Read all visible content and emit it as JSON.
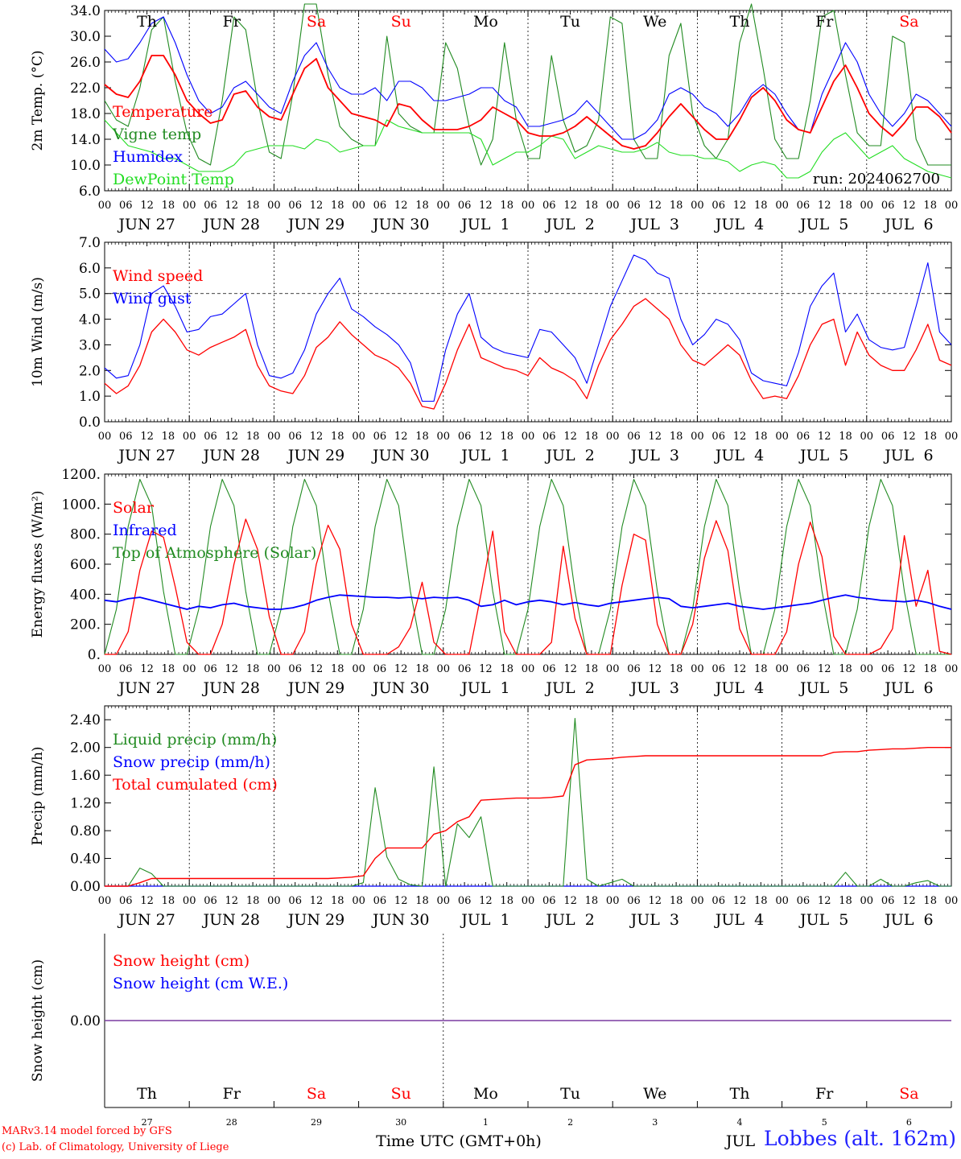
{
  "colors": {
    "red": "#ff0000",
    "green": "#228b22",
    "blue": "#0000ff",
    "lightgreen": "#22dd22",
    "purple": "#7a3ca0",
    "black": "#000000"
  },
  "footer": {
    "model": "MARv3.14 model forced by GFS",
    "lab": "(c) Lab. of Climatology, University of Liege",
    "station": "Lobbes (alt. 162m)"
  },
  "chart_data": [
    {
      "type": "line",
      "ylabel": "2m Temp. (°C)",
      "ylim": [
        6,
        34
      ],
      "yticks": [
        "6.0",
        "10.0",
        "14.0",
        "18.0",
        "22.0",
        "26.0",
        "30.0",
        "34.0"
      ],
      "note": "run: 2024062700",
      "grid": "vertical dotted at 00 UTC",
      "legend_placement": "left",
      "day_names": [
        "Th",
        "Fr",
        "Sa",
        "Su",
        "Mo",
        "Tu",
        "We",
        "Th",
        "Fr",
        "Sa"
      ],
      "day_colors": [
        "black",
        "black",
        "red",
        "red",
        "black",
        "black",
        "black",
        "black",
        "black",
        "red"
      ],
      "hour_ticks": [
        "00",
        "06",
        "12",
        "18"
      ],
      "date_labels": [
        "JUN 27",
        "JUN 28",
        "JUN 29",
        "JUN 30",
        "JUL  1",
        "JUL  2",
        "JUL  3",
        "JUL  4",
        "JUL  5",
        "JUL  6"
      ],
      "x_hours_step": 6,
      "series": [
        {
          "name": "Temperature",
          "color": "red",
          "values": [
            22.5,
            21,
            20.5,
            23,
            27,
            27,
            24,
            20,
            18,
            16.5,
            17,
            21,
            21.5,
            19,
            17.5,
            17,
            21,
            25,
            26.5,
            22,
            20,
            18,
            17.5,
            17,
            16,
            19.5,
            19,
            17,
            15.5,
            15.5,
            15.5,
            16,
            17,
            19,
            18,
            17,
            15,
            14.5,
            14.5,
            15,
            16,
            17.5,
            16,
            14.5,
            13,
            12.5,
            13,
            15,
            17.5,
            19.5,
            17.5,
            15.5,
            14,
            14,
            17,
            20.5,
            22,
            20,
            17,
            15.5,
            15,
            19,
            23,
            25.5,
            22,
            18,
            16,
            14.5,
            16.5,
            19,
            19,
            17.5,
            15
          ]
        },
        {
          "name": "Vigne temp",
          "color": "green",
          "values": [
            20,
            17,
            16,
            22,
            31,
            33,
            23,
            15,
            11,
            10,
            20,
            33,
            31,
            20,
            12,
            11,
            21,
            35,
            35,
            24,
            16,
            14,
            13,
            13,
            30,
            18,
            16,
            15,
            15,
            29,
            25,
            16,
            10,
            14,
            29,
            17,
            11,
            11,
            27,
            17,
            12,
            13,
            17,
            33,
            32,
            14,
            11,
            11,
            27,
            32,
            18,
            13,
            11,
            14,
            29,
            35,
            25,
            14,
            11,
            11,
            20,
            33,
            34,
            24,
            15,
            13,
            13,
            30,
            29,
            14,
            10,
            10,
            10
          ]
        },
        {
          "name": "Humidex",
          "color": "blue",
          "values": [
            28,
            26,
            26.5,
            29,
            32,
            33,
            29,
            24,
            20,
            18,
            19,
            22,
            23,
            21,
            19,
            18,
            23,
            27,
            29,
            25,
            22,
            21,
            21,
            22,
            20,
            23,
            23,
            22,
            20,
            20,
            20.5,
            21,
            22,
            22,
            20,
            19,
            16,
            16,
            16.5,
            17,
            18,
            20,
            18,
            16,
            14,
            14,
            15,
            17,
            21,
            22,
            21,
            19,
            18,
            16,
            18,
            21,
            22.5,
            21,
            18,
            15.5,
            15,
            21,
            25,
            29,
            26,
            21,
            18,
            16,
            18,
            21,
            20,
            18,
            16
          ]
        },
        {
          "name": "DewPoint Temp",
          "color": "lightgreen",
          "values": [
            17,
            15,
            13,
            12.5,
            12,
            11,
            11,
            10,
            9,
            9,
            9,
            10,
            12,
            12.5,
            13,
            13,
            13,
            12.5,
            14,
            13.5,
            12,
            12.5,
            13,
            13,
            17,
            16,
            15.5,
            15,
            15,
            15,
            15,
            15,
            14,
            10,
            11,
            12,
            12,
            13,
            14.5,
            14,
            11,
            12,
            13,
            12.5,
            12,
            12,
            12.5,
            13.5,
            12,
            11.5,
            11.5,
            11,
            11,
            10.5,
            9,
            10,
            10.5,
            10,
            8,
            8,
            9,
            12,
            14,
            15,
            13,
            11,
            12,
            13,
            11,
            10,
            9,
            8.5,
            8
          ]
        }
      ]
    },
    {
      "type": "line",
      "ylabel": "10m Wind (m/s)",
      "ylim": [
        0,
        7
      ],
      "yticks": [
        "0.0",
        "1.0",
        "2.0",
        "3.0",
        "4.0",
        "5.0",
        "6.0",
        "7.0"
      ],
      "hline": 5,
      "legend_placement": "left",
      "hour_ticks": [
        "00",
        "06",
        "12",
        "18"
      ],
      "date_labels": [
        "JUN 27",
        "JUN 28",
        "JUN 29",
        "JUN 30",
        "JUL  1",
        "JUL  2",
        "JUL  3",
        "JUL  4",
        "JUL  5",
        "JUL  6"
      ],
      "series": [
        {
          "name": "Wind speed",
          "color": "red",
          "values": [
            1.5,
            1.1,
            1.4,
            2.2,
            3.5,
            4.0,
            3.5,
            2.8,
            2.6,
            2.9,
            3.1,
            3.3,
            3.6,
            2.2,
            1.4,
            1.2,
            1.1,
            1.8,
            2.9,
            3.3,
            3.9,
            3.4,
            3.0,
            2.6,
            2.4,
            2.1,
            1.5,
            0.6,
            0.5,
            1.5,
            2.8,
            3.8,
            2.5,
            2.3,
            2.1,
            2.0,
            1.8,
            2.5,
            2.1,
            1.9,
            1.6,
            0.9,
            2.2,
            3.2,
            3.8,
            4.5,
            4.8,
            4.4,
            4.0,
            3.0,
            2.4,
            2.2,
            2.6,
            3.0,
            2.6,
            1.6,
            0.9,
            1.0,
            0.9,
            1.8,
            3.0,
            3.8,
            4.0,
            2.2,
            3.5,
            2.6,
            2.2,
            2.0,
            2.0,
            2.8,
            3.8,
            2.4,
            2.2
          ]
        },
        {
          "name": "Wind gust",
          "color": "blue",
          "values": [
            2.1,
            1.7,
            1.8,
            3.0,
            5.0,
            5.3,
            4.5,
            3.5,
            3.6,
            4.1,
            4.2,
            4.6,
            5.0,
            3.0,
            1.8,
            1.7,
            1.9,
            2.8,
            4.2,
            5.0,
            5.6,
            4.4,
            4.1,
            3.7,
            3.4,
            3.0,
            2.3,
            0.8,
            0.8,
            2.8,
            4.2,
            5.0,
            3.3,
            2.9,
            2.7,
            2.6,
            2.5,
            3.6,
            3.5,
            3.0,
            2.5,
            1.5,
            3.0,
            4.5,
            5.5,
            6.5,
            6.3,
            5.8,
            5.6,
            4.0,
            3.0,
            3.4,
            4.0,
            3.8,
            3.2,
            1.9,
            1.6,
            1.5,
            1.4,
            2.7,
            4.5,
            5.3,
            5.8,
            3.5,
            4.2,
            3.2,
            2.9,
            2.8,
            2.9,
            4.5,
            6.2,
            3.5,
            3.0
          ]
        }
      ]
    },
    {
      "type": "line",
      "ylabel": "Energy fluxes (W/m²)",
      "ylim": [
        0,
        1200
      ],
      "yticks": [
        "0.",
        "200.",
        "400.",
        "600.",
        "800.",
        "1000.",
        "1200."
      ],
      "legend_placement": "left",
      "hour_ticks": [
        "00",
        "06",
        "12",
        "18"
      ],
      "date_labels": [
        "JUN 27",
        "JUN 28",
        "JUN 29",
        "JUN 30",
        "JUL  1",
        "JUL  2",
        "JUL  3",
        "JUL  4",
        "JUL  5",
        "JUL  6"
      ],
      "series": [
        {
          "name": "Solar",
          "color": "red",
          "values": [
            0,
            0,
            150,
            560,
            820,
            780,
            450,
            80,
            0,
            0,
            200,
            600,
            900,
            700,
            250,
            0,
            0,
            150,
            600,
            860,
            700,
            200,
            0,
            0,
            0,
            50,
            180,
            480,
            80,
            0,
            0,
            0,
            400,
            820,
            150,
            0,
            0,
            0,
            80,
            720,
            240,
            0,
            0,
            0,
            460,
            800,
            760,
            200,
            0,
            0,
            200,
            640,
            890,
            690,
            170,
            0,
            0,
            0,
            150,
            600,
            880,
            650,
            120,
            0,
            0,
            0,
            40,
            170,
            790,
            320,
            560,
            20,
            0
          ]
        },
        {
          "name": "Infrared",
          "color": "blue",
          "values": [
            360,
            350,
            370,
            380,
            360,
            340,
            320,
            300,
            320,
            310,
            330,
            340,
            320,
            310,
            300,
            300,
            310,
            330,
            360,
            380,
            395,
            390,
            385,
            380,
            380,
            375,
            380,
            370,
            380,
            375,
            380,
            360,
            320,
            330,
            360,
            330,
            350,
            360,
            350,
            330,
            345,
            330,
            320,
            340,
            350,
            360,
            370,
            380,
            370,
            320,
            310,
            320,
            330,
            340,
            320,
            310,
            300,
            310,
            320,
            330,
            340,
            360,
            380,
            395,
            380,
            370,
            360,
            355,
            350,
            360,
            345,
            320,
            300
          ]
        },
        {
          "name": "Top of Atmosphere (Solar)",
          "color": "green",
          "values": [
            0,
            300,
            850,
            1165,
            990,
            420,
            0,
            0,
            300,
            850,
            1165,
            990,
            420,
            0,
            0,
            300,
            850,
            1165,
            990,
            420,
            0,
            0,
            300,
            850,
            1165,
            990,
            420,
            0,
            0,
            300,
            850,
            1165,
            990,
            420,
            0,
            0,
            300,
            850,
            1165,
            990,
            420,
            0,
            0,
            300,
            850,
            1165,
            990,
            420,
            0,
            0,
            300,
            850,
            1165,
            990,
            420,
            0,
            0,
            300,
            850,
            1165,
            990,
            420,
            0,
            0,
            300,
            850,
            1165,
            990,
            420,
            0,
            0,
            0,
            0
          ]
        }
      ]
    },
    {
      "type": "line",
      "ylabel": "Precip (mm/h)",
      "ylim": [
        0,
        2.6
      ],
      "yticks": [
        "0.00",
        "0.40",
        "0.80",
        "1.20",
        "1.60",
        "2.00",
        "2.40"
      ],
      "legend_placement": "left",
      "hour_ticks": [
        "00",
        "06",
        "12",
        "18"
      ],
      "date_labels": [
        "JUN 27",
        "JUN 28",
        "JUN 29",
        "JUN 30",
        "JUL  1",
        "JUL  2",
        "JUL  3",
        "JUL  4",
        "JUL  5",
        "JUL  6"
      ],
      "series": [
        {
          "name": "Liquid precip (mm/h)",
          "color": "green",
          "values": [
            0,
            0,
            0,
            0.26,
            0.18,
            0,
            0,
            0,
            0,
            0,
            0,
            0,
            0,
            0,
            0,
            0,
            0,
            0,
            0,
            0,
            0,
            0,
            0.05,
            1.42,
            0.42,
            0.1,
            0.02,
            0,
            1.72,
            0,
            0.9,
            0.7,
            1.0,
            0,
            0,
            0,
            0,
            0,
            0,
            0,
            2.42,
            0.1,
            0,
            0.05,
            0.1,
            0,
            0,
            0,
            0,
            0,
            0,
            0,
            0,
            0,
            0,
            0,
            0,
            0,
            0,
            0,
            0,
            0,
            0,
            0.2,
            0,
            0,
            0.1,
            0,
            0,
            0.05,
            0.08,
            0,
            0
          ]
        },
        {
          "name": "Snow precip (mm/h)",
          "color": "blue",
          "values": [
            0
          ]
        },
        {
          "name": "Total cumulated (cm)",
          "color": "red",
          "values": [
            0,
            0,
            0,
            0.05,
            0.11,
            0.11,
            0.11,
            0.11,
            0.11,
            0.11,
            0.11,
            0.11,
            0.11,
            0.11,
            0.11,
            0.11,
            0.11,
            0.11,
            0.11,
            0.11,
            0.12,
            0.13,
            0.15,
            0.4,
            0.55,
            0.55,
            0.55,
            0.55,
            0.75,
            0.8,
            0.93,
            1.0,
            1.24,
            1.25,
            1.26,
            1.27,
            1.27,
            1.27,
            1.28,
            1.3,
            1.75,
            1.82,
            1.83,
            1.84,
            1.86,
            1.87,
            1.88,
            1.88,
            1.88,
            1.88,
            1.88,
            1.88,
            1.88,
            1.88,
            1.88,
            1.88,
            1.88,
            1.88,
            1.88,
            1.88,
            1.88,
            1.88,
            1.93,
            1.94,
            1.94,
            1.96,
            1.97,
            1.98,
            1.98,
            1.99,
            2.0,
            2.0,
            2.0
          ]
        }
      ]
    },
    {
      "type": "line",
      "ylabel": "Snow height (cm)",
      "ylim": [
        -1,
        1
      ],
      "yticks": [
        "0.00"
      ],
      "legend_placement": "left",
      "xlabel": "Time UTC (GMT+0h)",
      "day_names": [
        "Th",
        "Fr",
        "Sa",
        "Su",
        "Mo",
        "Tu",
        "We",
        "Th",
        "Fr",
        "Sa"
      ],
      "day_colors": [
        "black",
        "black",
        "red",
        "red",
        "black",
        "black",
        "black",
        "black",
        "black",
        "red"
      ],
      "day_numbers": [
        "27",
        "28",
        "29",
        "30",
        "1",
        "2",
        "3",
        "4",
        "5",
        "6"
      ],
      "month_label": "JUL",
      "series": [
        {
          "name": "Snow height (cm)",
          "color": "red",
          "values": [
            0,
            0
          ]
        },
        {
          "name": "Snow height (cm W.E.)",
          "color": "blue",
          "values": [
            0,
            0
          ]
        }
      ]
    }
  ]
}
